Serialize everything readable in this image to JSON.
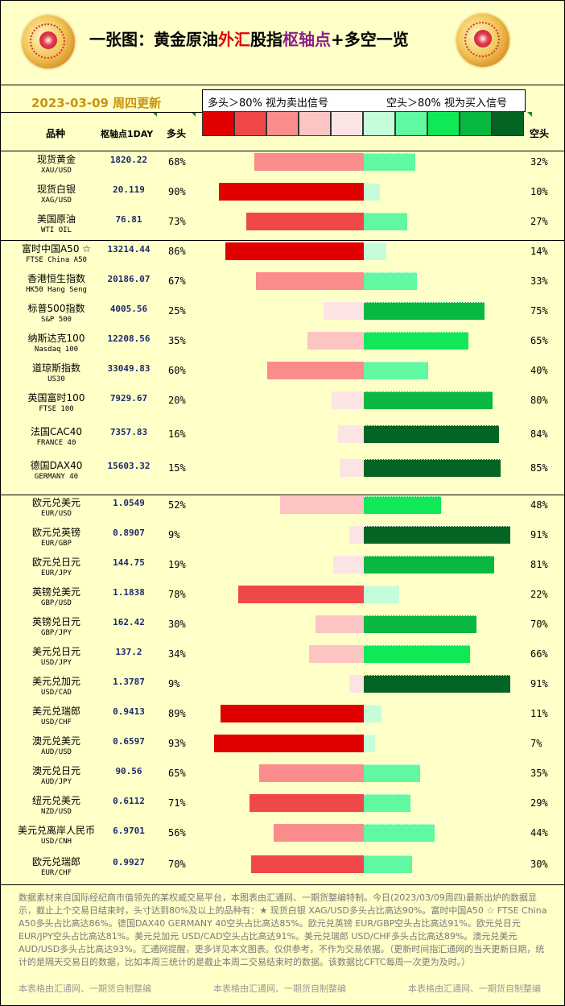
{
  "header": {
    "title_prefix": "一张图：黄金原油",
    "title_red": "外汇",
    "title_mid": "股指",
    "title_purple": "枢轴点",
    "title_suffix": "+多空一览",
    "date": "2023-03-09  周四更新",
    "legend_left": "多头＞80% 视为卖出信号",
    "legend_right": "空头＞80% 视为买入信号"
  },
  "columns": {
    "name": "品种",
    "pivot": "枢轴点1DAY",
    "long": "多头",
    "short": "空头"
  },
  "colors": {
    "swatches": [
      "#e00000",
      "#f04848",
      "#fa8c8c",
      "#fdc4c4",
      "#fde4e4",
      "#c4fdd8",
      "#60f8a0",
      "#10e858",
      "#08b840",
      "#036424"
    ],
    "background": "#ffffc8"
  },
  "chart_data": {
    "type": "bar",
    "long_label": "多头",
    "short_label": "空头",
    "rows": [
      {
        "name": "现货黄金",
        "sub": "XAU/USD",
        "pivot": "1820.22",
        "long": 68,
        "short": 32,
        "long_text": "68%",
        "short_text": "32%"
      },
      {
        "name": "现货白银",
        "sub": "XAG/USD",
        "pivot": "20.119",
        "long": 90,
        "short": 10,
        "long_text": "90%",
        "short_text": "10%"
      },
      {
        "name": "美国原油",
        "sub": "WTI OIL",
        "pivot": "76.81",
        "long": 73,
        "short": 27,
        "long_text": "73%",
        "short_text": "27%"
      },
      {
        "name": "富时中国A50 ☆",
        "sub": "FTSE China A50",
        "pivot": "13214.44",
        "long": 86,
        "short": 14,
        "long_text": "86%",
        "short_text": "14%"
      },
      {
        "name": "香港恒生指数",
        "sub": "HK50 Hang Seng",
        "pivot": "20186.07",
        "long": 67,
        "short": 33,
        "long_text": "67%",
        "short_text": "33%"
      },
      {
        "name": "标普500指数",
        "sub": "S&P 500",
        "pivot": "4005.56",
        "long": 25,
        "short": 75,
        "long_text": "25%",
        "short_text": "75%"
      },
      {
        "name": "纳斯达克100",
        "sub": "Nasdaq 100",
        "pivot": "12208.56",
        "long": 35,
        "short": 65,
        "long_text": "35%",
        "short_text": "65%"
      },
      {
        "name": "道琼斯指数",
        "sub": "US30",
        "pivot": "33049.83",
        "long": 60,
        "short": 40,
        "long_text": "60%",
        "short_text": "40%"
      },
      {
        "name": "英国富时100",
        "sub": "FTSE 100",
        "pivot": "7929.67",
        "long": 20,
        "short": 80,
        "long_text": "20%",
        "short_text": "80%"
      },
      {
        "name": "法国CAC40",
        "sub": "FRANCE 40",
        "pivot": "7357.83",
        "long": 16,
        "short": 84,
        "long_text": "16%",
        "short_text": "84%"
      },
      {
        "name": "德国DAX40",
        "sub": "GERMANY 40",
        "pivot": "15603.32",
        "long": 15,
        "short": 85,
        "long_text": "15%",
        "short_text": "85%"
      },
      {
        "name": "欧元兑美元",
        "sub": "EUR/USD",
        "pivot": "1.0549",
        "long": 52,
        "short": 48,
        "long_text": "52%",
        "short_text": "48%"
      },
      {
        "name": "欧元兑英镑",
        "sub": "EUR/GBP",
        "pivot": "0.8907",
        "long": 9,
        "short": 91,
        "long_text": "9%",
        "short_text": "91%"
      },
      {
        "name": "欧元兑日元",
        "sub": "EUR/JPY",
        "pivot": "144.75",
        "long": 19,
        "short": 81,
        "long_text": "19%",
        "short_text": "81%"
      },
      {
        "name": "英镑兑美元",
        "sub": "GBP/USD",
        "pivot": "1.1838",
        "long": 78,
        "short": 22,
        "long_text": "78%",
        "short_text": "22%"
      },
      {
        "name": "英镑兑日元",
        "sub": "GBP/JPY",
        "pivot": "162.42",
        "long": 30,
        "short": 70,
        "long_text": "30%",
        "short_text": "70%"
      },
      {
        "name": "美元兑日元",
        "sub": "USD/JPY",
        "pivot": "137.2",
        "long": 34,
        "short": 66,
        "long_text": "34%",
        "short_text": "66%"
      },
      {
        "name": "美元兑加元",
        "sub": "USD/CAD",
        "pivot": "1.3787",
        "long": 9,
        "short": 91,
        "long_text": "9%",
        "short_text": "91%"
      },
      {
        "name": "美元兑瑞郎",
        "sub": "USD/CHF",
        "pivot": "0.9413",
        "long": 89,
        "short": 11,
        "long_text": "89%",
        "short_text": "11%"
      },
      {
        "name": "澳元兑美元",
        "sub": "AUD/USD",
        "pivot": "0.6597",
        "long": 93,
        "short": 7,
        "long_text": "93%",
        "short_text": "7%"
      },
      {
        "name": "澳元兑日元",
        "sub": "AUD/JPY",
        "pivot": "90.56",
        "long": 65,
        "short": 35,
        "long_text": "65%",
        "short_text": "35%"
      },
      {
        "name": "纽元兑美元",
        "sub": "NZD/USD",
        "pivot": "0.6112",
        "long": 71,
        "short": 29,
        "long_text": "71%",
        "short_text": "29%"
      },
      {
        "name": "美元兑离岸人民币",
        "sub": "USD/CNH",
        "pivot": "6.9701",
        "long": 56,
        "short": 44,
        "long_text": "56%",
        "short_text": "44%"
      },
      {
        "name": "欧元兑瑞郎",
        "sub": "EUR/CHF",
        "pivot": "0.9927",
        "long": 70,
        "short": 30,
        "long_text": "70%",
        "short_text": "30%"
      }
    ]
  },
  "footer": {
    "text": "数据素材来自国际经纪商市值领先的某权威交易平台，本图表由汇通网、一期货整编特制。今日(2023/03/09周四)最新出炉的数据显示，截止上个交易日结束时，头寸达到80%及以上的品种有：★ 现货白银 XAG/USD多头占比高达90%。富时中国A50 ☆ FTSE China A50多头占比高达86%。德国DAX40  GERMANY 40空头占比高达85%。欧元兑英镑 EUR/GBP空头占比高达91%。欧元兑日元 EUR/JPY空头占比高达81%。美元兑加元 USD/CAD空头占比高达91%。美元兑瑞郎 USD/CHF多头占比高达89%。澳元兑美元 AUD/USD多头占比高达93%。汇通网提醒，更多详见本文图表。仅供参考，不作为交易依据。（更新时间指汇通网的当天更新日期，统计的是隔天交易日的数据，比如本周三统计的是截止本周二交易结束时的数据。该数据比CFTC每周一次更为及时。）",
    "credit": "本表格由汇通网、一期货自制整编"
  }
}
